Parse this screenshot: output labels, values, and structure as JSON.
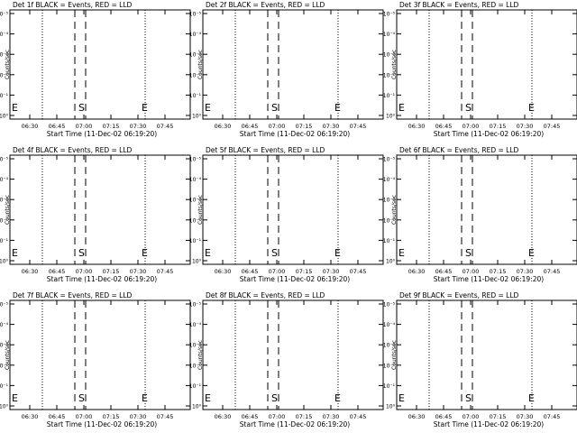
{
  "chart_data": [
    {
      "type": "line",
      "title": "Det 1f BLACK = Events, RED = LLD",
      "ylabel": "Counts/sec",
      "xlabel": "Start Time (11-Dec-02 06:19:20)",
      "x_tick_labels": [
        "06:30",
        "06:45",
        "07:00",
        "07:15",
        "07:30",
        "07:45"
      ],
      "y_tick_labels": [
        "10⁰",
        "10⁻¹",
        "10⁻²",
        "10⁻³",
        "10⁻⁴",
        "10⁻⁵"
      ],
      "series": [],
      "markers": [
        {
          "label": "E",
          "time": "06:19"
        },
        {
          "label": "S",
          "time": "06:57"
        },
        {
          "label": "E",
          "time": "07:32"
        }
      ],
      "dotted_lines": [
        "06:37",
        "07:34"
      ],
      "dashed_lines": [
        "06:55",
        "07:01"
      ]
    },
    {
      "type": "line",
      "title": "Det 2f BLACK = Events, RED = LLD",
      "ylabel": "Counts/sec",
      "xlabel": "Start Time (11-Dec-02 06:19:20)",
      "x_tick_labels": [
        "06:30",
        "06:45",
        "07:00",
        "07:15",
        "07:30",
        "07:45"
      ],
      "y_tick_labels": [
        "10⁰",
        "10⁻¹",
        "10⁻²",
        "10⁻³",
        "10⁻⁴",
        "10⁻⁵"
      ],
      "series": [],
      "markers": [
        {
          "label": "E",
          "time": "06:19"
        },
        {
          "label": "S",
          "time": "06:57"
        },
        {
          "label": "E",
          "time": "07:32"
        }
      ],
      "dotted_lines": [
        "06:37",
        "07:34"
      ],
      "dashed_lines": [
        "06:55",
        "07:01"
      ]
    },
    {
      "type": "line",
      "title": "Det 3f BLACK = Events, RED = LLD",
      "ylabel": "Counts/sec",
      "xlabel": "Start Time (11-Dec-02 06:19:20)",
      "x_tick_labels": [
        "06:30",
        "06:45",
        "07:00",
        "07:15",
        "07:30",
        "07:45"
      ],
      "y_tick_labels": [
        "10⁰",
        "10⁻¹",
        "10⁻²",
        "10⁻³",
        "10⁻⁴",
        "10⁻⁵"
      ],
      "series": [],
      "markers": [
        {
          "label": "E",
          "time": "06:19"
        },
        {
          "label": "S",
          "time": "06:57"
        },
        {
          "label": "E",
          "time": "07:32"
        }
      ],
      "dotted_lines": [
        "06:37",
        "07:34"
      ],
      "dashed_lines": [
        "06:55",
        "07:01"
      ]
    },
    {
      "type": "line",
      "title": "Det 4f BLACK = Events, RED = LLD",
      "ylabel": "Counts/sec",
      "xlabel": "Start Time (11-Dec-02 06:19:20)",
      "x_tick_labels": [
        "06:30",
        "06:45",
        "07:00",
        "07:15",
        "07:30",
        "07:45"
      ],
      "y_tick_labels": [
        "10⁰",
        "10⁻¹",
        "10⁻²",
        "10⁻³",
        "10⁻⁴",
        "10⁻⁵"
      ],
      "series": [],
      "markers": [
        {
          "label": "E",
          "time": "06:19"
        },
        {
          "label": "S",
          "time": "06:57"
        },
        {
          "label": "E",
          "time": "07:32"
        }
      ],
      "dotted_lines": [
        "06:37",
        "07:34"
      ],
      "dashed_lines": [
        "06:55",
        "07:01"
      ]
    },
    {
      "type": "line",
      "title": "Det 5f BLACK = Events, RED = LLD",
      "ylabel": "Counts/sec",
      "xlabel": "Start Time (11-Dec-02 06:19:20)",
      "x_tick_labels": [
        "06:30",
        "06:45",
        "07:00",
        "07:15",
        "07:30",
        "07:45"
      ],
      "y_tick_labels": [
        "10⁰",
        "10⁻¹",
        "10⁻²",
        "10⁻³",
        "10⁻⁴",
        "10⁻⁵"
      ],
      "series": [],
      "markers": [
        {
          "label": "E",
          "time": "06:19"
        },
        {
          "label": "S",
          "time": "06:57"
        },
        {
          "label": "E",
          "time": "07:32"
        }
      ],
      "dotted_lines": [
        "06:37",
        "07:34"
      ],
      "dashed_lines": [
        "06:55",
        "07:01"
      ]
    },
    {
      "type": "line",
      "title": "Det 6f BLACK = Events, RED = LLD",
      "ylabel": "Counts/sec",
      "xlabel": "Start Time (11-Dec-02 06:19:20)",
      "x_tick_labels": [
        "06:30",
        "06:45",
        "07:00",
        "07:15",
        "07:30",
        "07:45"
      ],
      "y_tick_labels": [
        "10⁰",
        "10⁻¹",
        "10⁻²",
        "10⁻³",
        "10⁻⁴",
        "10⁻⁵"
      ],
      "series": [],
      "markers": [
        {
          "label": "E",
          "time": "06:19"
        },
        {
          "label": "S",
          "time": "06:57"
        },
        {
          "label": "E",
          "time": "07:32"
        }
      ],
      "dotted_lines": [
        "06:37",
        "07:34"
      ],
      "dashed_lines": [
        "06:55",
        "07:01"
      ]
    },
    {
      "type": "line",
      "title": "Det 7f BLACK = Events, RED = LLD",
      "ylabel": "Counts/sec",
      "xlabel": "Start Time (11-Dec-02 06:19:20)",
      "x_tick_labels": [
        "06:30",
        "06:45",
        "07:00",
        "07:15",
        "07:30",
        "07:45"
      ],
      "y_tick_labels": [
        "10⁰",
        "10⁻¹",
        "10⁻²",
        "10⁻³",
        "10⁻⁴",
        "10⁻⁵"
      ],
      "series": [],
      "markers": [
        {
          "label": "E",
          "time": "06:19"
        },
        {
          "label": "S",
          "time": "06:57"
        },
        {
          "label": "E",
          "time": "07:32"
        }
      ],
      "dotted_lines": [
        "06:37",
        "07:34"
      ],
      "dashed_lines": [
        "06:55",
        "07:01"
      ]
    },
    {
      "type": "line",
      "title": "Det 8f BLACK = Events, RED = LLD",
      "ylabel": "Counts/sec",
      "xlabel": "Start Time (11-Dec-02 06:19:20)",
      "x_tick_labels": [
        "06:30",
        "06:45",
        "07:00",
        "07:15",
        "07:30",
        "07:45"
      ],
      "y_tick_labels": [
        "10⁰",
        "10⁻¹",
        "10⁻²",
        "10⁻³",
        "10⁻⁴",
        "10⁻⁵"
      ],
      "series": [],
      "markers": [
        {
          "label": "E",
          "time": "06:19"
        },
        {
          "label": "S",
          "time": "06:57"
        },
        {
          "label": "E",
          "time": "07:32"
        }
      ],
      "dotted_lines": [
        "06:37",
        "07:34"
      ],
      "dashed_lines": [
        "06:55",
        "07:01"
      ]
    },
    {
      "type": "line",
      "title": "Det 9f BLACK = Events, RED = LLD",
      "ylabel": "Counts/sec",
      "xlabel": "Start Time (11-Dec-02 06:19:20)",
      "x_tick_labels": [
        "06:30",
        "06:45",
        "07:00",
        "07:15",
        "07:30",
        "07:45"
      ],
      "y_tick_labels": [
        "10⁰",
        "10⁻¹",
        "10⁻²",
        "10⁻³",
        "10⁻⁴",
        "10⁻⁵"
      ],
      "series": [],
      "markers": [
        {
          "label": "E",
          "time": "06:19"
        },
        {
          "label": "S",
          "time": "06:57"
        },
        {
          "label": "E",
          "time": "07:32"
        }
      ],
      "dotted_lines": [
        "06:37",
        "07:34"
      ],
      "dashed_lines": [
        "06:55",
        "07:01"
      ]
    }
  ]
}
